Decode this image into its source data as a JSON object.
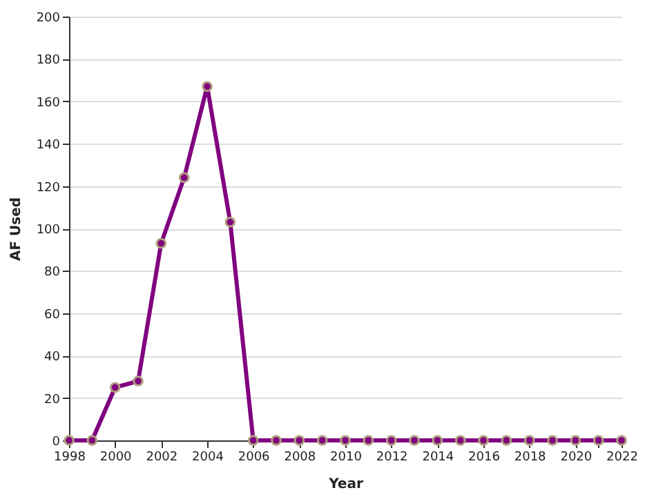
{
  "chart_data": {
    "type": "line",
    "xlabel": "Year",
    "ylabel": "AF Used",
    "x": [
      1998,
      1999,
      2000,
      2001,
      2002,
      2003,
      2004,
      2005,
      2006,
      2007,
      2008,
      2009,
      2010,
      2011,
      2012,
      2013,
      2014,
      2015,
      2016,
      2017,
      2018,
      2019,
      2020,
      2021,
      2022
    ],
    "series": [
      {
        "color": "#800080",
        "values": [
          0,
          0,
          25,
          28,
          93,
          124,
          167,
          103,
          0,
          0,
          0,
          0,
          0,
          0,
          0,
          0,
          0,
          0,
          0,
          0,
          0,
          0,
          0,
          0,
          0
        ]
      }
    ],
    "xlim": [
      1998,
      2022
    ],
    "xticks": [
      1998,
      2000,
      2002,
      2004,
      2006,
      2008,
      2010,
      2012,
      2014,
      2016,
      2018,
      2020,
      {
        "value": 2021,
        "label": null
      },
      2022
    ],
    "ylim": [
      0,
      200
    ],
    "yticks": [
      0,
      20,
      40,
      60,
      80,
      100,
      120,
      140,
      160,
      180,
      200
    ],
    "grid": "y",
    "marker": "circle",
    "line_style": "solid"
  }
}
